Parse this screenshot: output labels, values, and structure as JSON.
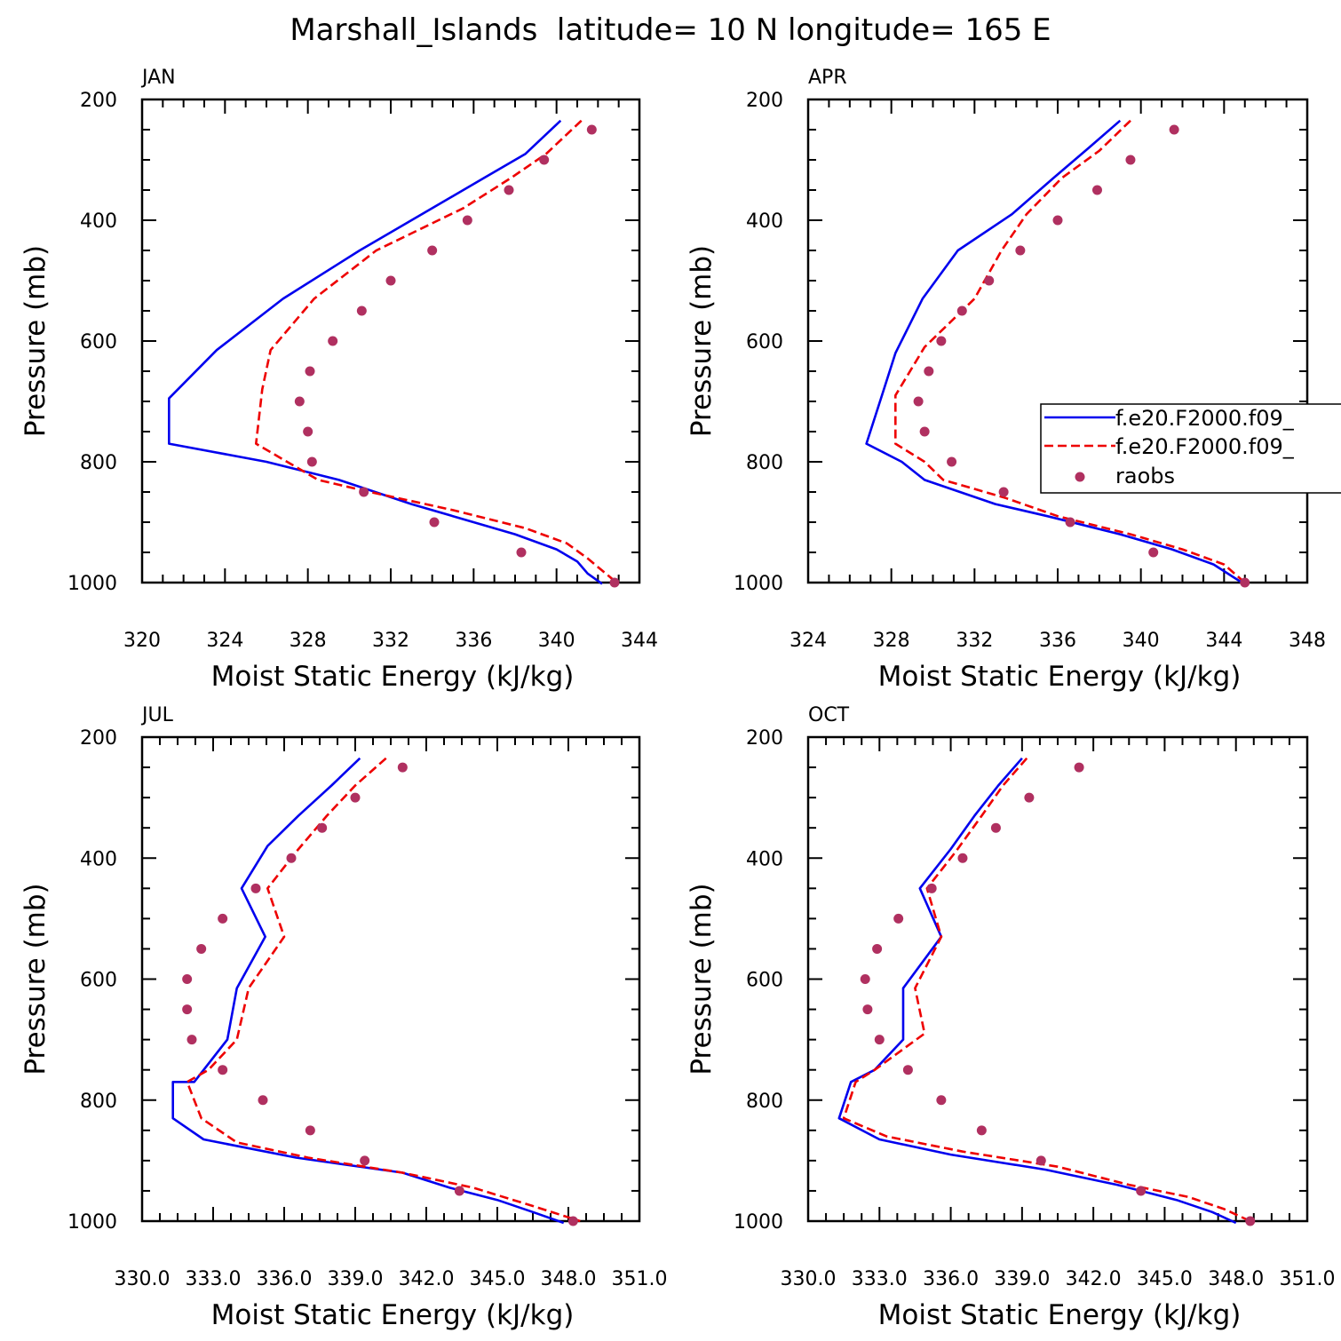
{
  "figure_title": "Marshall_Islands  latitude= 10 N longitude= 165 E",
  "legend": {
    "entries": [
      {
        "label": "f.e20.F2000.f09_",
        "style": "solid",
        "color": "#0000ee"
      },
      {
        "label": "f.e20.F2000.f09_",
        "style": "dashed",
        "color": "#ee0000"
      },
      {
        "label": "raobs",
        "style": "dots",
        "color": "#b03060"
      }
    ]
  },
  "chart_data": [
    {
      "type": "line",
      "month": "JAN",
      "title": "Marshall_Islands  latitude= 10 N longitude= 165 E",
      "xlabel": "Moist Static Energy (kJ/kg)",
      "ylabel": "Pressure (mb)",
      "xlim": [
        320,
        344
      ],
      "ylim": [
        1000,
        200
      ],
      "xticks": [
        "320",
        "324",
        "328",
        "332",
        "336",
        "340",
        "344"
      ],
      "yticks": [
        "200",
        "400",
        "600",
        "800",
        "1000"
      ],
      "series": [
        {
          "name": "f.e20.F2000.f09_",
          "style": "solid",
          "color": "#0000ee",
          "points": [
            [
              340.2,
              235
            ],
            [
              338.5,
              290
            ],
            [
              336.5,
              330
            ],
            [
              334.0,
              380
            ],
            [
              330.5,
              450
            ],
            [
              326.8,
              530
            ],
            [
              323.6,
              615
            ],
            [
              321.3,
              695
            ],
            [
              321.3,
              770
            ],
            [
              326.0,
              800
            ],
            [
              329.5,
              830
            ],
            [
              333.0,
              870
            ],
            [
              335.0,
              890
            ],
            [
              338.0,
              920
            ],
            [
              340.0,
              945
            ],
            [
              341.0,
              965
            ],
            [
              341.5,
              985
            ],
            [
              342.2,
              1002
            ]
          ]
        },
        {
          "name": "f.e20.F2000.f09_",
          "style": "dashed",
          "color": "#ee0000",
          "points": [
            [
              341.2,
              235
            ],
            [
              339.5,
              290
            ],
            [
              337.8,
              330
            ],
            [
              335.5,
              380
            ],
            [
              331.3,
              450
            ],
            [
              328.3,
              530
            ],
            [
              326.2,
              615
            ],
            [
              325.8,
              680
            ],
            [
              325.5,
              770
            ],
            [
              327.0,
              800
            ],
            [
              328.5,
              830
            ],
            [
              331.0,
              850
            ],
            [
              335.0,
              880
            ],
            [
              338.5,
              910
            ],
            [
              340.5,
              935
            ],
            [
              341.5,
              960
            ],
            [
              342.2,
              980
            ],
            [
              342.9,
              1000
            ]
          ]
        },
        {
          "name": "raobs",
          "style": "dots",
          "color": "#b03060",
          "points": [
            [
              341.7,
              250
            ],
            [
              339.4,
              300
            ],
            [
              337.7,
              350
            ],
            [
              335.7,
              400
            ],
            [
              334.0,
              450
            ],
            [
              332.0,
              500
            ],
            [
              330.6,
              550
            ],
            [
              329.2,
              600
            ],
            [
              328.1,
              650
            ],
            [
              327.6,
              700
            ],
            [
              328.0,
              750
            ],
            [
              328.2,
              800
            ],
            [
              330.7,
              850
            ],
            [
              334.1,
              900
            ],
            [
              338.3,
              950
            ],
            [
              342.8,
              1000
            ]
          ]
        }
      ]
    },
    {
      "type": "line",
      "month": "APR",
      "title": "Marshall_Islands  latitude= 10 N longitude= 165 E",
      "xlabel": "Moist Static Energy (kJ/kg)",
      "ylabel": "Pressure (mb)",
      "xlim": [
        324,
        348
      ],
      "ylim": [
        1000,
        200
      ],
      "xticks": [
        "324",
        "328",
        "332",
        "336",
        "340",
        "344",
        "348"
      ],
      "yticks": [
        "200",
        "400",
        "600",
        "800",
        "1000"
      ],
      "series": [
        {
          "name": "f.e20.F2000.f09_",
          "style": "solid",
          "color": "#0000ee",
          "points": [
            [
              339.0,
              235
            ],
            [
              337.5,
              280
            ],
            [
              335.8,
              330
            ],
            [
              333.8,
              390
            ],
            [
              331.2,
              450
            ],
            [
              329.5,
              530
            ],
            [
              328.2,
              620
            ],
            [
              327.5,
              695
            ],
            [
              326.8,
              770
            ],
            [
              328.5,
              800
            ],
            [
              329.6,
              830
            ],
            [
              333.0,
              870
            ],
            [
              335.5,
              890
            ],
            [
              339.0,
              920
            ],
            [
              341.5,
              945
            ],
            [
              343.5,
              970
            ],
            [
              344.5,
              992
            ],
            [
              345.0,
              1003
            ]
          ]
        },
        {
          "name": "f.e20.F2000.f09_",
          "style": "dashed",
          "color": "#ee0000",
          "points": [
            [
              339.5,
              235
            ],
            [
              338.0,
              285
            ],
            [
              336.2,
              330
            ],
            [
              334.5,
              390
            ],
            [
              333.3,
              450
            ],
            [
              332.0,
              530
            ],
            [
              329.6,
              610
            ],
            [
              328.2,
              690
            ],
            [
              328.2,
              770
            ],
            [
              329.6,
              800
            ],
            [
              330.5,
              830
            ],
            [
              333.5,
              860
            ],
            [
              336.0,
              890
            ],
            [
              339.5,
              920
            ],
            [
              342.0,
              945
            ],
            [
              344.0,
              970
            ],
            [
              345.0,
              1000
            ]
          ]
        },
        {
          "name": "raobs",
          "style": "dots",
          "color": "#b03060",
          "points": [
            [
              341.6,
              250
            ],
            [
              339.5,
              300
            ],
            [
              337.9,
              350
            ],
            [
              336.0,
              400
            ],
            [
              334.2,
              450
            ],
            [
              332.7,
              500
            ],
            [
              331.4,
              550
            ],
            [
              330.4,
              600
            ],
            [
              329.8,
              650
            ],
            [
              329.3,
              700
            ],
            [
              329.6,
              750
            ],
            [
              330.9,
              800
            ],
            [
              333.4,
              850
            ],
            [
              336.6,
              900
            ],
            [
              340.6,
              950
            ],
            [
              345.0,
              1000
            ]
          ]
        }
      ]
    },
    {
      "type": "line",
      "month": "JUL",
      "title": "Marshall_Islands  latitude= 10 N longitude= 165 E",
      "xlabel": "Moist Static Energy (kJ/kg)",
      "ylabel": "Pressure (mb)",
      "xlim": [
        330.0,
        351.0
      ],
      "ylim": [
        1000,
        200
      ],
      "xticks": [
        "330.0",
        "333.0",
        "336.0",
        "339.0",
        "342.0",
        "345.0",
        "348.0",
        "351.0"
      ],
      "yticks": [
        "200",
        "400",
        "600",
        "800",
        "1000"
      ],
      "series": [
        {
          "name": "f.e20.F2000.f09_",
          "style": "solid",
          "color": "#0000ee",
          "points": [
            [
              339.2,
              235
            ],
            [
              338.0,
              280
            ],
            [
              336.6,
              330
            ],
            [
              335.3,
              380
            ],
            [
              334.2,
              450
            ],
            [
              335.2,
              530
            ],
            [
              334.0,
              615
            ],
            [
              333.6,
              700
            ],
            [
              332.2,
              770
            ],
            [
              331.3,
              770
            ],
            [
              331.3,
              830
            ],
            [
              332.6,
              865
            ],
            [
              336.5,
              895
            ],
            [
              341.0,
              920
            ],
            [
              343.0,
              945
            ],
            [
              345.0,
              965
            ],
            [
              346.5,
              985
            ],
            [
              347.8,
              1003
            ]
          ]
        },
        {
          "name": "f.e20.F2000.f09_",
          "style": "dashed",
          "color": "#ee0000",
          "points": [
            [
              340.3,
              235
            ],
            [
              339.0,
              280
            ],
            [
              337.8,
              330
            ],
            [
              336.5,
              390
            ],
            [
              335.3,
              450
            ],
            [
              336.0,
              530
            ],
            [
              334.5,
              615
            ],
            [
              334.0,
              700
            ],
            [
              332.8,
              750
            ],
            [
              331.9,
              770
            ],
            [
              332.5,
              830
            ],
            [
              334.0,
              870
            ],
            [
              337.0,
              895
            ],
            [
              341.0,
              920
            ],
            [
              344.0,
              945
            ],
            [
              346.5,
              975
            ],
            [
              348.5,
              1000
            ]
          ]
        },
        {
          "name": "raobs",
          "style": "dots",
          "color": "#b03060",
          "points": [
            [
              341.0,
              250
            ],
            [
              339.0,
              300
            ],
            [
              337.6,
              350
            ],
            [
              336.3,
              400
            ],
            [
              334.8,
              450
            ],
            [
              333.4,
              500
            ],
            [
              332.5,
              550
            ],
            [
              331.9,
              600
            ],
            [
              331.9,
              650
            ],
            [
              332.1,
              700
            ],
            [
              333.4,
              750
            ],
            [
              335.1,
              800
            ],
            [
              337.1,
              850
            ],
            [
              339.4,
              900
            ],
            [
              343.4,
              950
            ],
            [
              348.2,
              1000
            ]
          ]
        }
      ]
    },
    {
      "type": "line",
      "month": "OCT",
      "title": "Marshall_Islands  latitude= 10 N longitude= 165 E",
      "xlabel": "Moist Static Energy (kJ/kg)",
      "ylabel": "Pressure (mb)",
      "xlim": [
        330.0,
        351.0
      ],
      "ylim": [
        1000,
        200
      ],
      "xticks": [
        "330.0",
        "333.0",
        "336.0",
        "339.0",
        "342.0",
        "345.0",
        "348.0",
        "351.0"
      ],
      "yticks": [
        "200",
        "400",
        "600",
        "800",
        "1000"
      ],
      "series": [
        {
          "name": "f.e20.F2000.f09_",
          "style": "solid",
          "color": "#0000ee",
          "points": [
            [
              339.0,
              235
            ],
            [
              338.0,
              280
            ],
            [
              337.0,
              330
            ],
            [
              336.0,
              385
            ],
            [
              334.7,
              450
            ],
            [
              335.6,
              530
            ],
            [
              334.0,
              615
            ],
            [
              334.0,
              700
            ],
            [
              332.8,
              750
            ],
            [
              331.8,
              770
            ],
            [
              331.3,
              830
            ],
            [
              333.0,
              865
            ],
            [
              336.0,
              890
            ],
            [
              340.0,
              915
            ],
            [
              343.0,
              940
            ],
            [
              345.5,
              965
            ],
            [
              347.0,
              985
            ],
            [
              348.0,
              1003
            ]
          ]
        },
        {
          "name": "f.e20.F2000.f09_",
          "style": "dashed",
          "color": "#ee0000",
          "points": [
            [
              339.2,
              235
            ],
            [
              338.2,
              280
            ],
            [
              337.3,
              330
            ],
            [
              336.2,
              390
            ],
            [
              335.0,
              450
            ],
            [
              335.6,
              530
            ],
            [
              334.5,
              615
            ],
            [
              334.9,
              690
            ],
            [
              332.8,
              750
            ],
            [
              332.0,
              770
            ],
            [
              331.5,
              830
            ],
            [
              333.3,
              860
            ],
            [
              336.5,
              885
            ],
            [
              340.5,
              910
            ],
            [
              343.5,
              940
            ],
            [
              346.0,
              960
            ],
            [
              347.5,
              980
            ],
            [
              348.6,
              1000
            ]
          ]
        },
        {
          "name": "raobs",
          "style": "dots",
          "color": "#b03060",
          "points": [
            [
              341.4,
              250
            ],
            [
              339.3,
              300
            ],
            [
              337.9,
              350
            ],
            [
              336.5,
              400
            ],
            [
              335.2,
              450
            ],
            [
              333.8,
              500
            ],
            [
              332.9,
              550
            ],
            [
              332.4,
              600
            ],
            [
              332.5,
              650
            ],
            [
              333.0,
              700
            ],
            [
              334.2,
              750
            ],
            [
              335.6,
              800
            ],
            [
              337.3,
              850
            ],
            [
              339.8,
              900
            ],
            [
              344.0,
              950
            ],
            [
              348.6,
              1000
            ]
          ]
        }
      ]
    }
  ]
}
